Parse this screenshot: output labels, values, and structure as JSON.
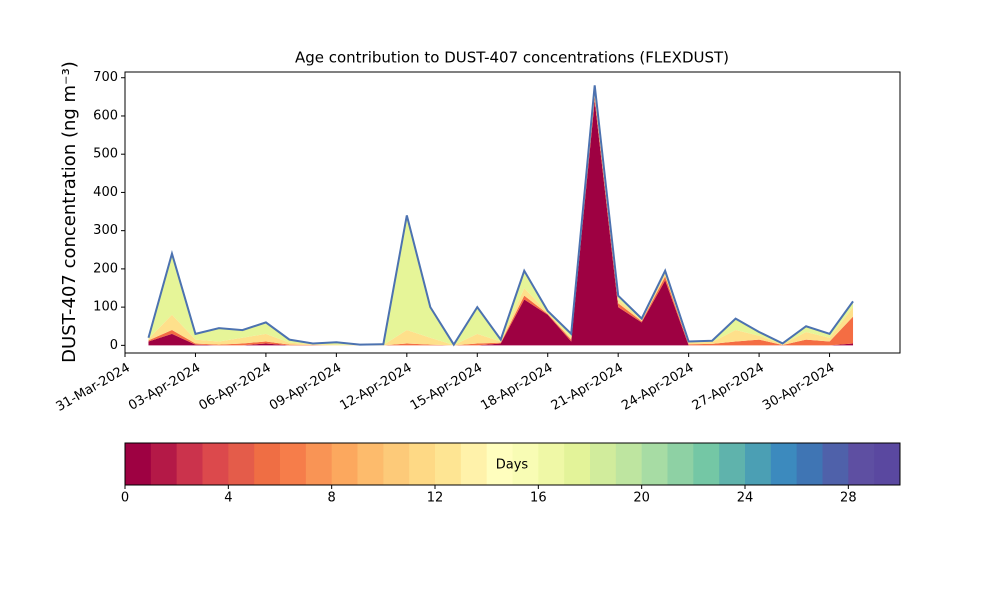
{
  "chart_data": {
    "type": "stacked_area",
    "title": "Age contribution to DUST-407 concentrations (FLEXDUST)",
    "ylabel": "DUST-407 concentration (ng m⁻³)",
    "x": [
      "2024-04-01",
      "2024-04-02",
      "2024-04-03",
      "2024-04-04",
      "2024-04-05",
      "2024-04-06",
      "2024-04-07",
      "2024-04-08",
      "2024-04-09",
      "2024-04-10",
      "2024-04-11",
      "2024-04-12",
      "2024-04-13",
      "2024-04-14",
      "2024-04-15",
      "2024-04-16",
      "2024-04-17",
      "2024-04-18",
      "2024-04-19",
      "2024-04-20",
      "2024-04-21",
      "2024-04-22",
      "2024-04-23",
      "2024-04-24",
      "2024-04-25",
      "2024-04-26",
      "2024-04-27",
      "2024-04-28",
      "2024-04-29",
      "2024-04-30",
      "2024-05-01"
    ],
    "series": [
      {
        "color": "#9e0142",
        "values": [
          10,
          30,
          2,
          0,
          0,
          5,
          0,
          0,
          0,
          0,
          0,
          0,
          0,
          0,
          0,
          5,
          120,
          80,
          10,
          640,
          100,
          60,
          170,
          0,
          0,
          0,
          0,
          0,
          0,
          0,
          5
        ]
      },
      {
        "color": "#f46d43",
        "values": [
          3,
          10,
          3,
          2,
          5,
          5,
          2,
          1,
          0,
          0,
          0,
          5,
          2,
          0,
          5,
          2,
          10,
          2,
          5,
          10,
          10,
          3,
          10,
          3,
          4,
          10,
          15,
          1,
          15,
          10,
          70
        ]
      },
      {
        "color": "#fee08b",
        "values": [
          4,
          40,
          10,
          8,
          15,
          20,
          5,
          2,
          2,
          1,
          1,
          35,
          18,
          1,
          25,
          3,
          20,
          3,
          5,
          10,
          10,
          3,
          10,
          4,
          5,
          30,
          10,
          2,
          20,
          10,
          25
        ]
      },
      {
        "color": "#e6f598",
        "values": [
          3,
          160,
          15,
          35,
          20,
          30,
          8,
          2,
          6,
          1,
          2,
          300,
          80,
          1,
          70,
          5,
          45,
          5,
          10,
          20,
          10,
          4,
          5,
          3,
          3,
          30,
          10,
          2,
          15,
          10,
          15
        ]
      }
    ],
    "total_line": {
      "color": "#4c72b0",
      "values": [
        20,
        240,
        30,
        45,
        40,
        60,
        15,
        5,
        8,
        2,
        3,
        340,
        100,
        2,
        100,
        15,
        195,
        90,
        30,
        680,
        130,
        70,
        195,
        10,
        12,
        70,
        35,
        5,
        50,
        30,
        115
      ]
    },
    "xlim": [
      "2024-03-31",
      "2024-05-03"
    ],
    "xticks": [
      {
        "value": "2024-03-31",
        "label": "31-Mar-2024"
      },
      {
        "value": "2024-04-03",
        "label": "03-Apr-2024"
      },
      {
        "value": "2024-04-06",
        "label": "06-Apr-2024"
      },
      {
        "value": "2024-04-09",
        "label": "09-Apr-2024"
      },
      {
        "value": "2024-04-12",
        "label": "12-Apr-2024"
      },
      {
        "value": "2024-04-15",
        "label": "15-Apr-2024"
      },
      {
        "value": "2024-04-18",
        "label": "18-Apr-2024"
      },
      {
        "value": "2024-04-21",
        "label": "21-Apr-2024"
      },
      {
        "value": "2024-04-24",
        "label": "24-Apr-2024"
      },
      {
        "value": "2024-04-27",
        "label": "27-Apr-2024"
      },
      {
        "value": "2024-04-30",
        "label": "30-Apr-2024"
      }
    ],
    "ylim": [
      -20,
      715
    ],
    "yticks": [
      0,
      100,
      200,
      300,
      400,
      500,
      600,
      700
    ],
    "colorbar": {
      "label": "Days",
      "lim": [
        0,
        30
      ],
      "ticks": [
        0,
        4,
        8,
        12,
        16,
        20,
        24,
        28
      ],
      "colors": [
        "#9e0142",
        "#b41947",
        "#cb334c",
        "#dc494c",
        "#e45c4a",
        "#ef6e44",
        "#f67d4a",
        "#f99455",
        "#fca85e",
        "#fdbb6c",
        "#fdca79",
        "#fed985",
        "#fee593",
        "#fff2aa",
        "#fffebe",
        "#f8fcb4",
        "#eff8a6",
        "#e3f399",
        "#d1ec9c",
        "#bee5a0",
        "#a7dca4",
        "#8ed1a4",
        "#74c7a5",
        "#5fb3ac",
        "#4b9fb4",
        "#3c8abe",
        "#3f75b4",
        "#4f61aa",
        "#5e4fa2",
        "#5a48a0"
      ]
    }
  }
}
